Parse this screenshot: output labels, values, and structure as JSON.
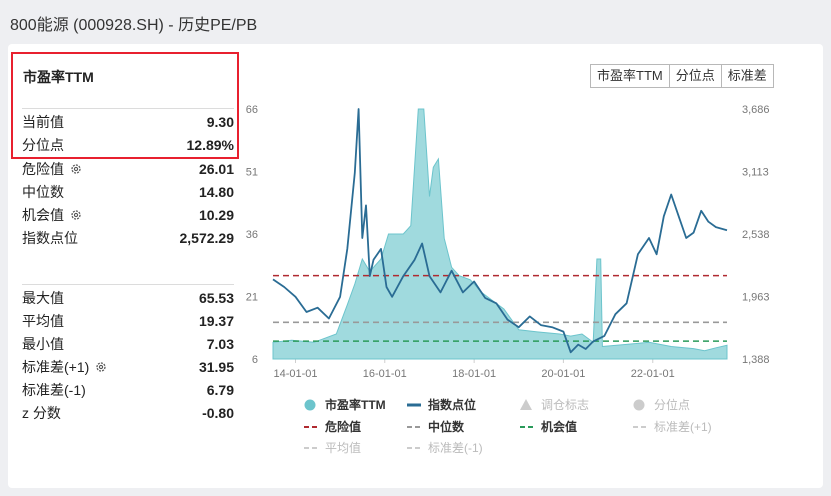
{
  "header": {
    "title": "800能源 (000928.SH) - 历史PE/PB"
  },
  "panel": {
    "title": "市盈率TTM",
    "group1": [
      {
        "label": "当前值",
        "value": "9.30",
        "gear": false
      },
      {
        "label": "分位点",
        "value": "12.89%",
        "gear": false
      }
    ],
    "group2": [
      {
        "label": "危险值",
        "value": "26.01",
        "gear": true
      },
      {
        "label": "中位数",
        "value": "14.80",
        "gear": false
      },
      {
        "label": "机会值",
        "value": "10.29",
        "gear": true
      },
      {
        "label": "指数点位",
        "value": "2,572.29",
        "gear": false
      }
    ],
    "group3": [
      {
        "label": "最大值",
        "value": "65.53",
        "gear": false
      },
      {
        "label": "平均值",
        "value": "19.37",
        "gear": false
      },
      {
        "label": "最小值",
        "value": "7.03",
        "gear": false
      },
      {
        "label": "标准差(+1)",
        "value": "31.95",
        "gear": true
      },
      {
        "label": "标准差(-1)",
        "value": "6.79",
        "gear": false
      },
      {
        "label": "z 分数",
        "value": "-0.80",
        "gear": false
      }
    ]
  },
  "tabs": [
    "市盈率TTM",
    "分位点",
    "标准差"
  ],
  "colors": {
    "pe_fill": "#8fd3d8",
    "pe_line": "#6cc4cc",
    "index_line": "#2a6c94",
    "danger": "#b02a30",
    "median": "#999999",
    "chance": "#2a9a5a",
    "faded": "#cccccc"
  },
  "chart_data": {
    "type": "area",
    "x_ticks": [
      "14-01-01",
      "16-01-01",
      "18-01-01",
      "20-01-01",
      "22-01-01"
    ],
    "x_range": [
      "2013-07-01",
      "2023-08-31"
    ],
    "y_left_ticks": [
      "6",
      "21",
      "36",
      "51",
      "66"
    ],
    "y_left_range": [
      6,
      66
    ],
    "y_right_ticks": [
      "1,388",
      "1,963",
      "2,538",
      "3,113",
      "3,686"
    ],
    "y_right_range": [
      1388,
      3686
    ],
    "reference_lines": [
      {
        "name": "危险值",
        "value": 26.01
      },
      {
        "name": "中位数",
        "value": 14.8
      },
      {
        "name": "机会值",
        "value": 10.29
      }
    ],
    "series": [
      {
        "name": "市盈率TTM",
        "axis": "left",
        "points": [
          [
            "2013-07-01",
            10
          ],
          [
            "2013-12-01",
            10.5
          ],
          [
            "2014-06-01",
            10
          ],
          [
            "2014-12-01",
            12
          ],
          [
            "2015-03-01",
            19
          ],
          [
            "2015-05-01",
            24
          ],
          [
            "2015-07-01",
            30
          ],
          [
            "2015-09-01",
            27
          ],
          [
            "2015-12-01",
            30
          ],
          [
            "2016-02-01",
            36
          ],
          [
            "2016-06-01",
            36
          ],
          [
            "2016-08-01",
            38
          ],
          [
            "2016-10-01",
            66
          ],
          [
            "2016-11-15",
            66
          ],
          [
            "2017-01-01",
            45
          ],
          [
            "2017-02-01",
            52
          ],
          [
            "2017-03-15",
            54
          ],
          [
            "2017-05-01",
            35
          ],
          [
            "2017-07-01",
            28
          ],
          [
            "2017-09-01",
            26
          ],
          [
            "2017-12-01",
            25
          ],
          [
            "2018-03-01",
            22
          ],
          [
            "2018-06-01",
            20
          ],
          [
            "2018-09-01",
            18
          ],
          [
            "2019-01-01",
            13
          ],
          [
            "2019-06-01",
            12.5
          ],
          [
            "2019-12-01",
            12
          ],
          [
            "2020-03-01",
            11.5
          ],
          [
            "2020-06-01",
            12
          ],
          [
            "2020-09-01",
            10
          ],
          [
            "2020-10-01",
            30
          ],
          [
            "2020-11-01",
            30
          ],
          [
            "2020-11-15",
            9
          ],
          [
            "2021-06-01",
            9.5
          ],
          [
            "2021-12-01",
            10
          ],
          [
            "2022-06-01",
            9
          ],
          [
            "2022-12-01",
            8.5
          ],
          [
            "2023-03-01",
            8
          ],
          [
            "2023-06-01",
            8.7
          ],
          [
            "2023-08-31",
            9.3
          ]
        ]
      },
      {
        "name": "指数点位",
        "axis": "right",
        "points": [
          [
            "2013-07-01",
            2120
          ],
          [
            "2013-10-01",
            2050
          ],
          [
            "2014-01-01",
            1960
          ],
          [
            "2014-04-01",
            1820
          ],
          [
            "2014-07-01",
            1860
          ],
          [
            "2014-10-01",
            1760
          ],
          [
            "2015-01-01",
            1960
          ],
          [
            "2015-03-01",
            2400
          ],
          [
            "2015-05-01",
            3100
          ],
          [
            "2015-06-01",
            3686
          ],
          [
            "2015-07-01",
            2500
          ],
          [
            "2015-08-01",
            2800
          ],
          [
            "2015-09-01",
            2150
          ],
          [
            "2015-10-01",
            2300
          ],
          [
            "2015-12-01",
            2400
          ],
          [
            "2016-01-15",
            2050
          ],
          [
            "2016-03-01",
            1960
          ],
          [
            "2016-06-01",
            2150
          ],
          [
            "2016-09-01",
            2300
          ],
          [
            "2016-11-01",
            2450
          ],
          [
            "2017-01-01",
            2150
          ],
          [
            "2017-04-01",
            2000
          ],
          [
            "2017-07-01",
            2200
          ],
          [
            "2017-10-01",
            2000
          ],
          [
            "2018-01-01",
            2100
          ],
          [
            "2018-04-01",
            1950
          ],
          [
            "2018-07-01",
            1900
          ],
          [
            "2018-10-01",
            1750
          ],
          [
            "2019-01-01",
            1680
          ],
          [
            "2019-04-01",
            1780
          ],
          [
            "2019-07-01",
            1700
          ],
          [
            "2019-10-01",
            1680
          ],
          [
            "2020-01-01",
            1640
          ],
          [
            "2020-03-01",
            1450
          ],
          [
            "2020-05-01",
            1520
          ],
          [
            "2020-07-01",
            1480
          ],
          [
            "2020-09-01",
            1550
          ],
          [
            "2020-12-01",
            1600
          ],
          [
            "2021-03-01",
            1800
          ],
          [
            "2021-06-01",
            1900
          ],
          [
            "2021-09-01",
            2350
          ],
          [
            "2021-12-01",
            2500
          ],
          [
            "2022-02-01",
            2350
          ],
          [
            "2022-04-01",
            2700
          ],
          [
            "2022-06-01",
            2900
          ],
          [
            "2022-08-01",
            2700
          ],
          [
            "2022-10-01",
            2500
          ],
          [
            "2022-12-01",
            2550
          ],
          [
            "2023-02-01",
            2750
          ],
          [
            "2023-04-01",
            2650
          ],
          [
            "2023-06-01",
            2600
          ],
          [
            "2023-08-31",
            2572
          ]
        ]
      }
    ],
    "legend": [
      {
        "name": "市盈率TTM",
        "marker": "circle",
        "color": "#6cc4cc",
        "active": true
      },
      {
        "name": "指数点位",
        "marker": "line",
        "color": "#2a6c94",
        "active": true
      },
      {
        "name": "调仓标志",
        "marker": "triangle",
        "color": "#cccccc",
        "active": false
      },
      {
        "name": "分位点",
        "marker": "circle",
        "color": "#cccccc",
        "active": false
      },
      {
        "name": "危险值",
        "marker": "dash",
        "color": "#b02a30",
        "active": true
      },
      {
        "name": "中位数",
        "marker": "dash",
        "color": "#999999",
        "active": true
      },
      {
        "name": "机会值",
        "marker": "dash",
        "color": "#2a9a5a",
        "active": true
      },
      {
        "name": "标准差(+1)",
        "marker": "dash",
        "color": "#cccccc",
        "active": false
      },
      {
        "name": "平均值",
        "marker": "dash",
        "color": "#cccccc",
        "active": false
      },
      {
        "name": "标准差(-1)",
        "marker": "dash",
        "color": "#cccccc",
        "active": false
      }
    ]
  }
}
